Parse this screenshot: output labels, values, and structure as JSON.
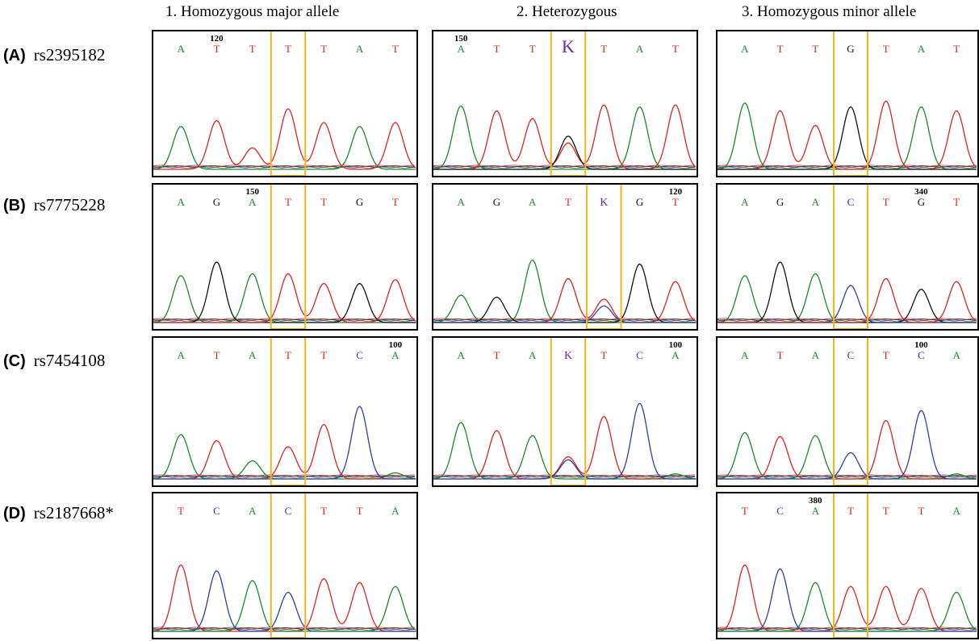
{
  "columns": [
    "1. Homozygous major allele",
    "2. Heterozygous",
    "3. Homozygous minor allele"
  ],
  "rows": [
    {
      "letter": "(A)",
      "snp": "rs2395182"
    },
    {
      "letter": "(B)",
      "snp": "rs7775228"
    },
    {
      "letter": "(C)",
      "snp": "rs7454108"
    },
    {
      "letter": "(D)",
      "snp": "rs2187668*"
    }
  ],
  "colors": {
    "A": "#1a8a2a",
    "C": "#2b3fae",
    "G": "#111111",
    "T": "#e0221f",
    "K": "#6a2c9a",
    "highlight": "#f2b61a"
  },
  "panels": [
    {
      "id": "A1",
      "row": 0,
      "col": 0,
      "position_label": "120",
      "bases": [
        "A",
        "T",
        "T",
        "T",
        "T",
        "A",
        "T"
      ],
      "hl": 3,
      "peaks": [
        [
          "A",
          0.44
        ],
        [
          "T",
          0.5
        ],
        [
          "T",
          0.22
        ],
        [
          "T",
          0.62
        ],
        [
          "T",
          0.48
        ],
        [
          "A",
          0.44
        ],
        [
          "T",
          0.48
        ]
      ]
    },
    {
      "id": "A2",
      "row": 0,
      "col": 1,
      "position_label": "150",
      "bases": [
        "A",
        "T",
        "T",
        "K",
        "T",
        "A",
        "T"
      ],
      "hl": 3,
      "peaks": [
        [
          "A",
          0.65
        ],
        [
          "T",
          0.6
        ],
        [
          "T",
          0.52
        ],
        [
          "G",
          0.34
        ],
        [
          "T",
          0.66
        ],
        [
          "A",
          0.64
        ],
        [
          "T",
          0.66
        ]
      ],
      "extra": [
        [
          "T",
          0.27
        ]
      ]
    },
    {
      "id": "A3",
      "row": 0,
      "col": 2,
      "position_label": "",
      "bases": [
        "A",
        "T",
        "T",
        "G",
        "T",
        "A",
        "T"
      ],
      "hl": 3,
      "peaks": [
        [
          "A",
          0.68
        ],
        [
          "T",
          0.6
        ],
        [
          "T",
          0.45
        ],
        [
          "G",
          0.64
        ],
        [
          "T",
          0.7
        ],
        [
          "A",
          0.64
        ],
        [
          "T",
          0.6
        ]
      ]
    },
    {
      "id": "B1",
      "row": 1,
      "col": 0,
      "position_label": "150",
      "bases": [
        "A",
        "G",
        "A",
        "T",
        "T",
        "G",
        "T"
      ],
      "hl": 3,
      "peaks": [
        [
          "A",
          0.48
        ],
        [
          "G",
          0.62
        ],
        [
          "A",
          0.5
        ],
        [
          "T",
          0.5
        ],
        [
          "T",
          0.4
        ],
        [
          "G",
          0.4
        ],
        [
          "T",
          0.44
        ]
      ]
    },
    {
      "id": "B2",
      "row": 1,
      "col": 1,
      "position_label": "120",
      "bases": [
        "A",
        "G",
        "A",
        "T",
        "K",
        "G",
        "T"
      ],
      "hl": 4,
      "peaks": [
        [
          "A",
          0.28
        ],
        [
          "G",
          0.26
        ],
        [
          "A",
          0.64
        ],
        [
          "T",
          0.45
        ],
        [
          "T",
          0.24
        ],
        [
          "G",
          0.6
        ],
        [
          "T",
          0.42
        ]
      ],
      "extra": [
        [
          "C",
          0.17
        ]
      ]
    },
    {
      "id": "B3",
      "row": 1,
      "col": 2,
      "position_label": "340",
      "bases": [
        "A",
        "G",
        "A",
        "C",
        "T",
        "G",
        "T"
      ],
      "hl": 3,
      "peaks": [
        [
          "A",
          0.48
        ],
        [
          "G",
          0.62
        ],
        [
          "A",
          0.5
        ],
        [
          "C",
          0.38
        ],
        [
          "T",
          0.45
        ],
        [
          "G",
          0.34
        ],
        [
          "T",
          0.42
        ]
      ]
    },
    {
      "id": "C1",
      "row": 2,
      "col": 0,
      "position_label": "100",
      "bases": [
        "A",
        "T",
        "A",
        "T",
        "T",
        "C",
        "A"
      ],
      "hl": 3,
      "peaks": [
        [
          "A",
          0.44
        ],
        [
          "T",
          0.38
        ],
        [
          "A",
          0.18
        ],
        [
          "T",
          0.32
        ],
        [
          "T",
          0.54
        ],
        [
          "C",
          0.72
        ],
        [
          "A",
          0.06
        ]
      ]
    },
    {
      "id": "C2",
      "row": 2,
      "col": 1,
      "position_label": "100",
      "bases": [
        "A",
        "T",
        "A",
        "K",
        "T",
        "C",
        "A"
      ],
      "hl": 3,
      "peaks": [
        [
          "A",
          0.56
        ],
        [
          "T",
          0.48
        ],
        [
          "A",
          0.43
        ],
        [
          "T",
          0.22
        ],
        [
          "T",
          0.62
        ],
        [
          "C",
          0.75
        ],
        [
          "A",
          0.05
        ]
      ],
      "extra": [
        [
          "C",
          0.19
        ]
      ]
    },
    {
      "id": "C3",
      "row": 2,
      "col": 2,
      "position_label": "100",
      "bases": [
        "A",
        "T",
        "A",
        "C",
        "T",
        "C",
        "A"
      ],
      "hl": 3,
      "peaks": [
        [
          "A",
          0.46
        ],
        [
          "T",
          0.42
        ],
        [
          "A",
          0.43
        ],
        [
          "C",
          0.26
        ],
        [
          "T",
          0.58
        ],
        [
          "C",
          0.68
        ],
        [
          "A",
          0.05
        ]
      ]
    },
    {
      "id": "D1",
      "row": 3,
      "col": 0,
      "position_label": "",
      "bases": [
        "T",
        "C",
        "A",
        "C",
        "T",
        "T",
        "A"
      ],
      "hl": 3,
      "peaks": [
        [
          "T",
          0.68
        ],
        [
          "C",
          0.62
        ],
        [
          "A",
          0.52
        ],
        [
          "C",
          0.4
        ],
        [
          "T",
          0.54
        ],
        [
          "T",
          0.5
        ],
        [
          "A",
          0.46
        ]
      ]
    },
    {
      "id": "D3",
      "row": 3,
      "col": 2,
      "position_label": "380",
      "bases": [
        "T",
        "C",
        "A",
        "T",
        "T",
        "T",
        "A"
      ],
      "hl": 3,
      "peaks": [
        [
          "T",
          0.68
        ],
        [
          "C",
          0.64
        ],
        [
          "A",
          0.5
        ],
        [
          "T",
          0.46
        ],
        [
          "T",
          0.46
        ],
        [
          "T",
          0.44
        ],
        [
          "A",
          0.4
        ]
      ]
    }
  ]
}
